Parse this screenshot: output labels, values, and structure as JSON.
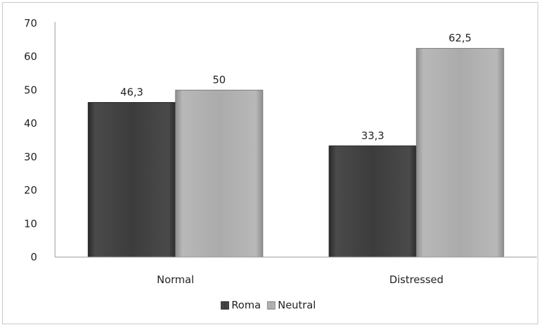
{
  "chart_data": {
    "type": "bar",
    "categories": [
      "Normal",
      "Distressed"
    ],
    "series": [
      {
        "name": "Roma",
        "values": [
          46.3,
          33.3
        ],
        "labels": [
          "46,3",
          "33,3"
        ],
        "color": "#3a3a3a"
      },
      {
        "name": "Neutral",
        "values": [
          50,
          62.5
        ],
        "labels": [
          "50",
          "62,5"
        ],
        "color": "#a9a9a9"
      }
    ],
    "ylim": [
      0,
      70
    ],
    "yticks": [
      "0",
      "10",
      "20",
      "30",
      "40",
      "50",
      "60",
      "70"
    ],
    "title": "",
    "xlabel": "",
    "ylabel": "",
    "grid": false,
    "legend_position": "bottom"
  }
}
